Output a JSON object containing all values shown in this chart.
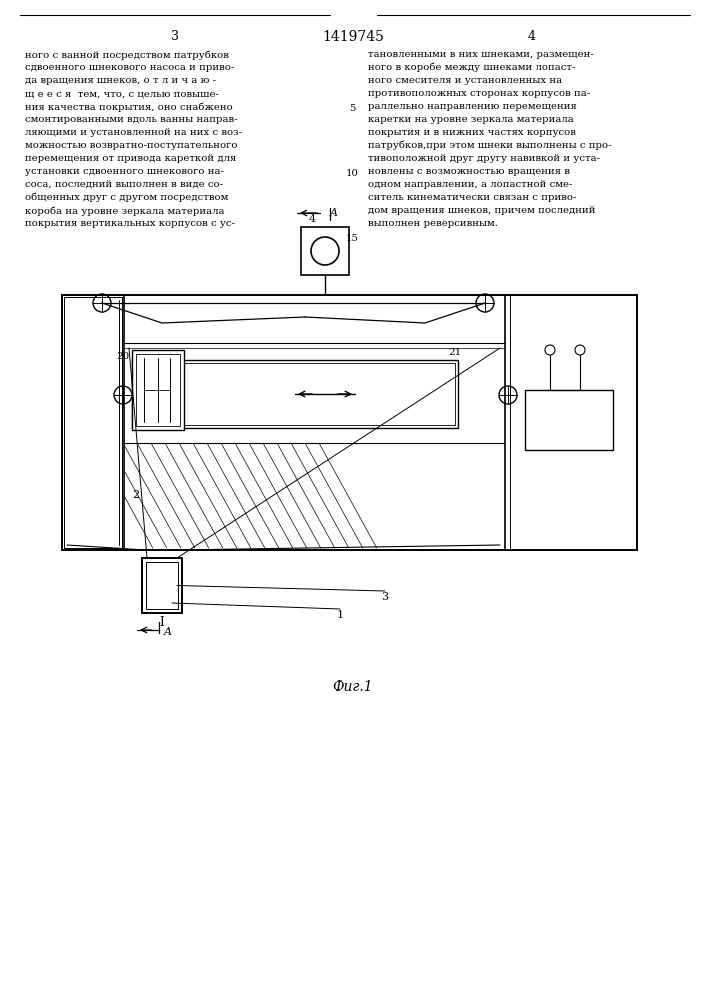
{
  "page_title": "1419745",
  "page_left": "3",
  "page_right": "4",
  "fig_caption": "Фиг.1",
  "text_left": [
    "ного с ванной посредством патрубков",
    "сдвоенного шнекового насоса и приво-",
    "да вращения шнеков, о т л и ч а ю -",
    "щ е е с я  тем, что, с целью повыше-",
    "ния качества покрытия, оно снабжено",
    "смонтированными вдоль ванны направ-",
    "ляющими и установленной на них с воз-",
    "можностью возвратно-поступательного",
    "перемещения от привода кареткой для",
    "установки сдвоенного шнекового на-",
    "соса, последний выполнен в виде со-",
    "общенных друг с другом посредством",
    "короба на уровне зеркала материала",
    "покрытия вертикальных корпусов с ус-"
  ],
  "text_right": [
    "тановленными в них шнеками, размещен-",
    "ного в коробе между шнеками лопаст-",
    "ного смесителя и установленных на",
    "противоположных сторонах корпусов па-",
    "раллельно направлению перемещения",
    "каретки на уровне зеркала материала",
    "покрытия и в нижних частях корпусов",
    "патрубков,при этом шнеки выполнены с про-",
    "тивоположной друг другу навивкой и уста-",
    "новлены с возможностью вращения в",
    "одном направлении, а лопастной сме-",
    "ситель кинематически связан с приво-",
    "дом вращения шнеков, причем последний",
    "выполнен реверсивным."
  ],
  "line_nums": [
    [
      5,
      4
    ],
    [
      10,
      9
    ],
    [
      15,
      14
    ]
  ],
  "bg_color": "#ffffff",
  "draw_color": "#000000"
}
